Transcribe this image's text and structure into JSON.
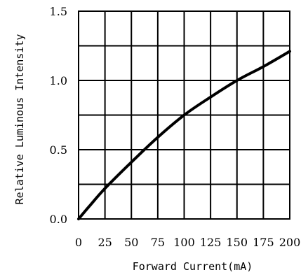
{
  "chart_data": {
    "type": "line",
    "xlabel": "Forward Current(mA)",
    "ylabel": "Relative Luminous Intensity",
    "xlim": [
      0,
      200
    ],
    "ylim": [
      0,
      1.5
    ],
    "x_ticks": [
      "0",
      "25",
      "50",
      "75",
      "100",
      "125",
      "150",
      "175",
      "200"
    ],
    "y_ticks": [
      "0.0",
      "0.5",
      "1.0",
      "1.5"
    ],
    "grid": true,
    "series": [
      {
        "x": [
          0,
          10,
          25,
          50,
          75,
          100,
          125,
          150,
          175,
          200
        ],
        "values": [
          0,
          0.09,
          0.22,
          0.41,
          0.59,
          0.75,
          0.88,
          1.0,
          1.1,
          1.21
        ]
      }
    ]
  }
}
